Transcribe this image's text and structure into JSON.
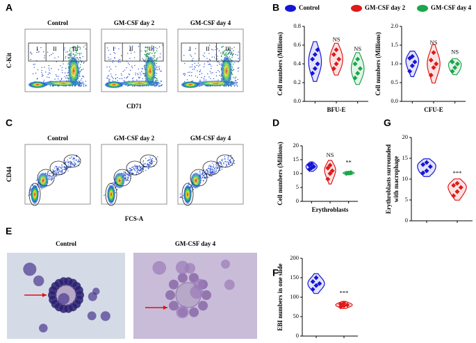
{
  "panel_labels": [
    "A",
    "B",
    "C",
    "D",
    "E",
    "F",
    "G"
  ],
  "flow_a": {
    "titles": [
      "Control",
      "GM-CSF day 2",
      "GM-CSF day 4"
    ],
    "ylabel": "C-Kit",
    "xlabel": "CD71",
    "gates": [
      "I",
      "II",
      "III"
    ]
  },
  "flow_c": {
    "titles": [
      "Control",
      "GM-CSF day 2",
      "GM-CSF day 4"
    ],
    "ylabel": "CD44",
    "xlabel": "FCS-A"
  },
  "micrographs": {
    "titles": [
      "Control",
      "GM-CSF day 4"
    ]
  },
  "chart_data": [
    {
      "type": "violin",
      "legend": true,
      "ylabel": "Cell numbers (Millions)",
      "xlabel": "BFU-E",
      "ylim": [
        0,
        0.8
      ],
      "yticks": [
        {
          "value": 0,
          "label": "0.0"
        },
        0.2,
        0.4,
        0.6,
        0.8
      ],
      "series": [
        {
          "name": "Control",
          "color": "#1515d8",
          "values": [
            0.3,
            0.35,
            0.4,
            0.45,
            0.5,
            0.55
          ]
        },
        {
          "name": "GM-CSF day 2",
          "color": "#e01818",
          "values": [
            0.35,
            0.4,
            0.45,
            0.5,
            0.55
          ],
          "annotation": "NS"
        },
        {
          "name": "GM-CSF day 4",
          "color": "#1aa64a",
          "values": [
            0.25,
            0.3,
            0.35,
            0.4,
            0.45
          ],
          "annotation": "NS"
        }
      ]
    },
    {
      "type": "violin",
      "ylabel": "Cell numbers (Millions)",
      "xlabel": "CFU-E",
      "ylim": [
        0,
        2
      ],
      "yticks": [
        {
          "value": 0,
          "label": "0.0"
        },
        0.5,
        {
          "value": 1,
          "label": "1.0"
        },
        1.5,
        {
          "value": 2,
          "label": "2.0"
        }
      ],
      "series": [
        {
          "color": "#1515d8",
          "values": [
            0.8,
            0.95,
            1.05,
            1.15,
            1.2
          ]
        },
        {
          "color": "#e01818",
          "values": [
            0.7,
            0.9,
            1.0,
            1.1,
            1.3
          ],
          "annotation": "NS"
        },
        {
          "color": "#1aa64a",
          "values": [
            0.8,
            0.9,
            1.0,
            1.05
          ],
          "annotation": "NS"
        }
      ]
    },
    {
      "type": "violin",
      "ylabel": "Cell numbers (Millions)",
      "xlabel": "Erythroblasts",
      "ylim": [
        0,
        20
      ],
      "yticks": [
        0,
        5,
        10,
        15,
        20
      ],
      "series": [
        {
          "color": "#1515d8",
          "values": [
            11.5,
            12,
            12.5,
            13,
            13.5
          ]
        },
        {
          "color": "#e01818",
          "values": [
            8,
            10,
            11,
            12,
            13
          ],
          "annotation": "NS"
        },
        {
          "color": "#1aa64a",
          "values": [
            10,
            10.2,
            10.4
          ],
          "annotation": "**"
        }
      ]
    },
    {
      "type": "violin",
      "ylabel": [
        "Erythroblasts surrounded",
        "with macrophage"
      ],
      "ylim": [
        0,
        20
      ],
      "yticks": [
        0,
        5,
        10,
        15,
        20
      ],
      "series": [
        {
          "color": "#1515d8",
          "values": [
            11.5,
            12,
            13,
            13.5,
            14
          ]
        },
        {
          "color": "#e01818",
          "values": [
            6,
            7,
            8,
            8.5,
            9
          ],
          "annotation": "***"
        }
      ]
    },
    {
      "type": "violin",
      "ylabel": "EBI numbers in one slide",
      "ylim": [
        0,
        200
      ],
      "yticks": [
        0,
        50,
        100,
        150,
        200
      ],
      "series": [
        {
          "color": "#1515d8",
          "values": [
            120,
            130,
            135,
            140,
            150
          ]
        },
        {
          "color": "#e01818",
          "values": [
            75,
            78,
            80,
            82,
            85
          ],
          "annotation": "***"
        }
      ]
    }
  ]
}
